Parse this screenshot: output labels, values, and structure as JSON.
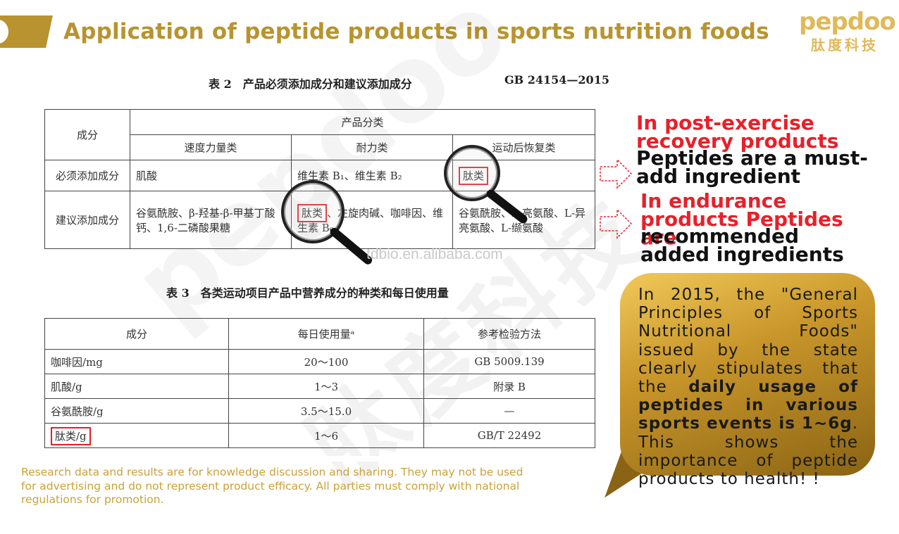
{
  "header": {
    "title": "Application of peptide products in sports nutrition foods"
  },
  "logo": {
    "en": "pepdoo",
    "cn": "肽度科技"
  },
  "watermark": {
    "en": "pepdoo",
    "cn": "肽度科技"
  },
  "site_text": "tdbio.en.alibaba.com",
  "table2": {
    "caption": "表 2　产品必须添加成分和建议添加成分",
    "standard": "GB 24154—2015",
    "corner_header": "成分",
    "group_header": "产品分类",
    "columns": [
      "速度力量类",
      "耐力类",
      "运动后恢复类"
    ],
    "rows": [
      {
        "label": "必须添加成分",
        "c1": "肌酸",
        "c2": "维生素 B₁、维生素 B₂",
        "c3": "肽类"
      },
      {
        "label": "建议添加成分",
        "c1": "谷氨酰胺、β-羟基-β-甲基丁酸钙、1,6-二磷酸果糖",
        "c2_highlight": "肽类",
        "c2_rest": "、左旋肉碱、咖啡因、维生素 B₆",
        "c3": "谷氨酰胺、L-亮氨酸、L-异亮氨酸、L-缬氨酸"
      }
    ]
  },
  "table3": {
    "caption": "表 3　各类运动项目产品中营养成分的种类和每日使用量",
    "headers": [
      "成分",
      "每日使用量ᵃ",
      "参考检验方法"
    ],
    "rows": [
      {
        "ingredient": "咖啡因/mg",
        "daily": "20～100",
        "method": "GB 5009.139"
      },
      {
        "ingredient": "肌酸/g",
        "daily": "1～3",
        "method": "附录 B"
      },
      {
        "ingredient": "谷氨酰胺/g",
        "daily": "3.5～15.0",
        "method": "—"
      },
      {
        "ingredient": "肽类/g",
        "daily": "1～6",
        "method": "GB/T 22492"
      }
    ]
  },
  "callouts": {
    "recovery_red": "In post-exercise recovery products",
    "recovery_black": "Peptides are a must-add ingredient",
    "endurance_red": "In endurance products Peptides are",
    "endurance_black": "recommended added ingredients"
  },
  "bubble": {
    "part1": "In 2015, the \"General Principles of Sports Nutritional Foods\" issued by the state clearly stipulates that the ",
    "bold": "daily usage of peptides in various sports events is 1~6g",
    "part2": ". This shows the importance of peptide products to health! !"
  },
  "disclaimer": "Research data and results are for knowledge discussion and sharing. They may not be used for advertising and do not represent product efficacy. All parties must comply with national regulations for promotion.",
  "colors": {
    "gold": "#b8932f",
    "red": "#e8202a",
    "logo": "#e0b95a"
  }
}
